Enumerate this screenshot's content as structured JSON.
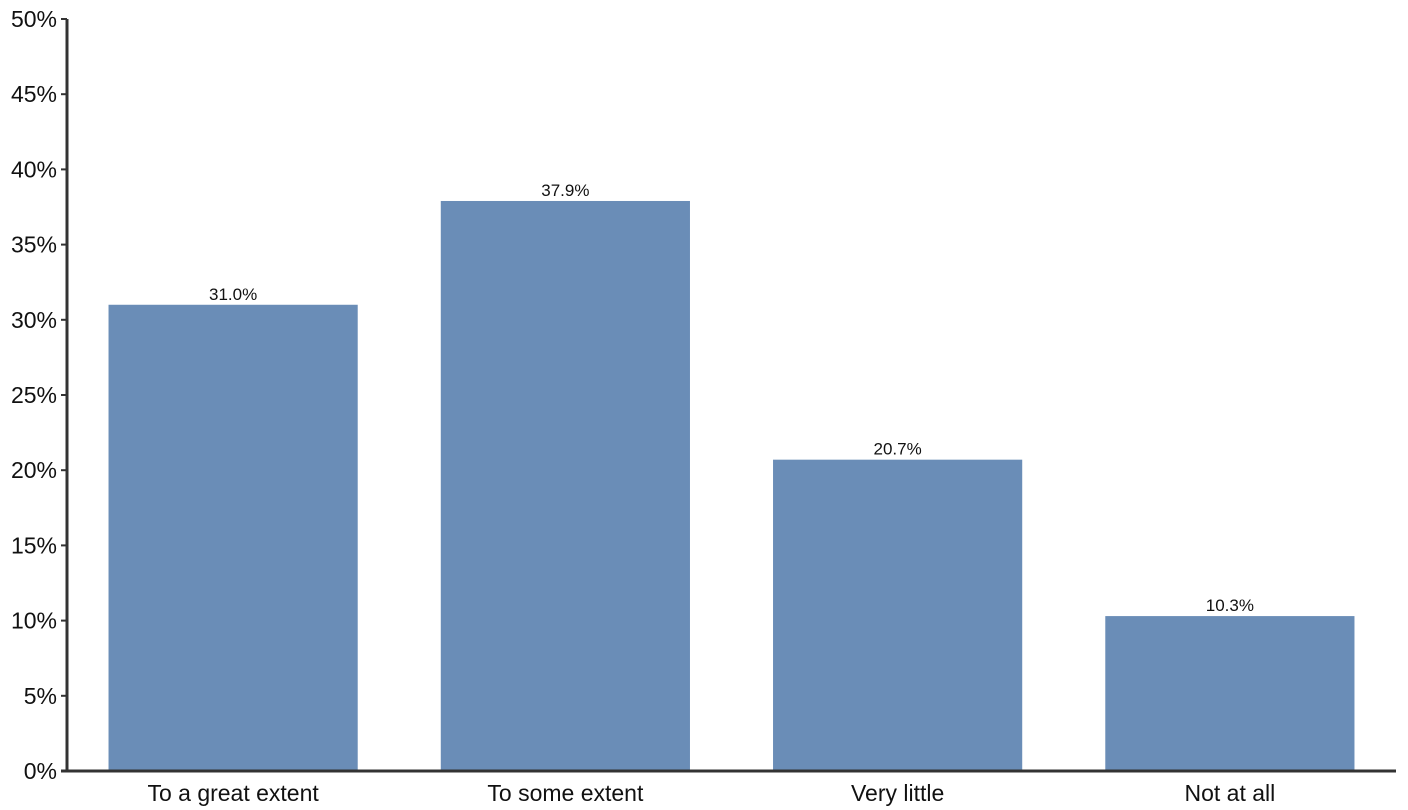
{
  "chart_data": {
    "type": "bar",
    "categories": [
      "To a great extent",
      "To some extent",
      "Very little",
      "Not at all"
    ],
    "values": [
      31.0,
      37.9,
      20.7,
      10.3
    ],
    "data_labels": [
      "31.0%",
      "37.9%",
      "20.7%",
      "10.3%"
    ],
    "y_ticks": [
      0,
      5,
      10,
      15,
      20,
      25,
      30,
      35,
      40,
      45,
      50
    ],
    "y_tick_labels": [
      "0%",
      "5%",
      "10%",
      "15%",
      "20%",
      "25%",
      "30%",
      "35%",
      "40%",
      "45%",
      "50%"
    ],
    "ylim": [
      0,
      50
    ],
    "title": "",
    "xlabel": "",
    "ylabel": "",
    "grid": false,
    "legend": "none",
    "bar_color": "#6a8db7",
    "axis_color": "#333333"
  }
}
